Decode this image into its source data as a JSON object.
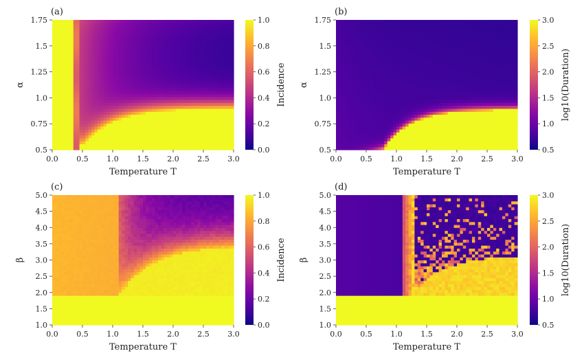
{
  "chart_data": [
    {
      "panel": "(a)",
      "type": "heatmap",
      "xlabel": "Temperature T",
      "ylabel": "α",
      "xlim": [
        0.0,
        3.0
      ],
      "ylim": [
        0.5,
        1.75
      ],
      "xticks": [
        "0.0",
        "0.5",
        "1.0",
        "1.5",
        "2.0",
        "2.5",
        "3.0"
      ],
      "yticks": [
        "0.5",
        "0.75",
        "1.0",
        "1.25",
        "1.5",
        "1.75"
      ],
      "colorbar": {
        "label": "Incidence",
        "range": [
          0.0,
          1.0
        ],
        "ticks": [
          "0.0",
          "0.2",
          "0.4",
          "0.6",
          "0.8",
          "1.0"
        ]
      },
      "colormap": "plasma",
      "regions": [
        {
          "x": [
            0.0,
            0.35
          ],
          "y": [
            0.5,
            1.75
          ],
          "value": 1.0
        },
        {
          "x": [
            0.35,
            0.45
          ],
          "y": [
            0.5,
            1.75
          ],
          "value_range": [
            0.5,
            0.75
          ]
        },
        {
          "x": [
            0.5,
            3.0
          ],
          "y": [
            0.5,
            0.88
          ],
          "value": 1.0
        },
        {
          "x": [
            1.5,
            3.0
          ],
          "y": [
            1.4,
            1.75
          ],
          "value": 0.1
        }
      ]
    },
    {
      "panel": "(b)",
      "type": "heatmap",
      "xlabel": "Temperature T",
      "ylabel": "α",
      "xlim": [
        0.0,
        3.0
      ],
      "ylim": [
        0.5,
        1.75
      ],
      "xticks": [
        "0.0",
        "0.5",
        "1.0",
        "1.5",
        "2.0",
        "2.5",
        "3.0"
      ],
      "yticks": [
        "0.5",
        "0.75",
        "1.0",
        "1.25",
        "1.5",
        "1.75"
      ],
      "colorbar": {
        "label": "log10(Duration)",
        "range": [
          0.5,
          3.0
        ],
        "ticks": [
          "0.5",
          "1.0",
          "1.5",
          "2.0",
          "2.5",
          "3.0"
        ]
      },
      "colormap": "plasma",
      "regions": [
        {
          "x": [
            0.8,
            3.0
          ],
          "y": [
            0.5,
            0.88
          ],
          "value": 3.0
        },
        {
          "x": [
            0.0,
            3.0
          ],
          "y": [
            0.9,
            1.75
          ],
          "value": 0.8
        }
      ]
    },
    {
      "panel": "(c)",
      "type": "heatmap",
      "xlabel": "Temperature T",
      "ylabel": "β",
      "xlim": [
        0.0,
        3.0
      ],
      "ylim": [
        1.0,
        5.0
      ],
      "xticks": [
        "0.0",
        "0.5",
        "1.0",
        "1.5",
        "2.0",
        "2.5",
        "3.0"
      ],
      "yticks": [
        "1.0",
        "1.5",
        "2.0",
        "2.5",
        "3.0",
        "3.5",
        "4.0",
        "4.5",
        "5.0"
      ],
      "colorbar": {
        "label": "Incidence",
        "range": [
          0.0,
          1.0
        ],
        "ticks": [
          "0.0",
          "0.2",
          "0.4",
          "0.6",
          "0.8",
          "1.0"
        ]
      },
      "colormap": "plasma",
      "regions": [
        {
          "x": [
            0.0,
            3.0
          ],
          "y": [
            1.0,
            1.95
          ],
          "value": 1.0
        },
        {
          "x": [
            0.0,
            1.1
          ],
          "y": [
            2.0,
            5.0
          ],
          "value": 0.85
        },
        {
          "x": [
            2.0,
            3.0
          ],
          "y": [
            3.5,
            5.0
          ],
          "value": 0.15
        }
      ]
    },
    {
      "panel": "(d)",
      "type": "heatmap",
      "xlabel": "Temperature T",
      "ylabel": "β",
      "xlim": [
        0.0,
        3.0
      ],
      "ylim": [
        1.0,
        5.0
      ],
      "xticks": [
        "0.0",
        "0.5",
        "1.0",
        "1.5",
        "2.0",
        "2.5",
        "3.0"
      ],
      "yticks": [
        "1.0",
        "1.5",
        "2.0",
        "2.5",
        "3.0",
        "3.5",
        "4.0",
        "4.5",
        "5.0"
      ],
      "colorbar": {
        "label": "log10(Duration)",
        "range": [
          0.5,
          3.0
        ],
        "ticks": [
          "0.5",
          "1.0",
          "1.5",
          "2.0",
          "2.5",
          "3.0"
        ]
      },
      "colormap": "plasma",
      "regions": [
        {
          "x": [
            0.0,
            3.0
          ],
          "y": [
            1.0,
            1.9
          ],
          "value": 3.0
        },
        {
          "x": [
            0.0,
            1.1
          ],
          "y": [
            2.0,
            5.0
          ],
          "value": 0.8
        },
        {
          "x": [
            1.2,
            1.6
          ],
          "y": [
            2.0,
            5.0
          ],
          "value": 2.6
        },
        {
          "x": [
            2.0,
            3.0
          ],
          "y": [
            3.5,
            5.0
          ],
          "value": 0.7
        }
      ]
    }
  ]
}
